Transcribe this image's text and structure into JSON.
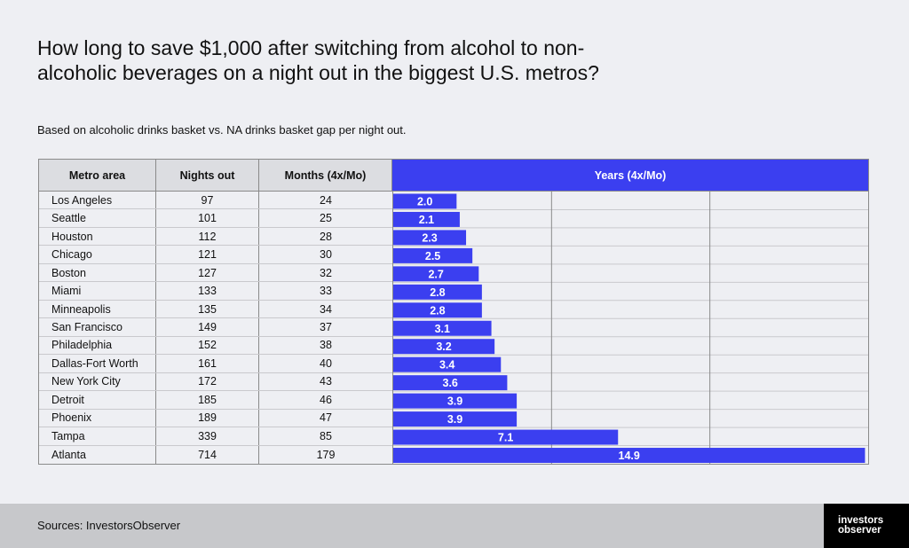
{
  "title": "How long to save $1,000 after switching from alcohol to non-alcoholic beverages on a night out in the biggest U.S. metros?",
  "subtitle": "Based on alcoholic drinks basket vs. NA drinks basket gap per night out.",
  "columns": {
    "metro": "Metro area",
    "nights": "Nights out",
    "months": "Months (4x/Mo)",
    "years": "Years (4x/Mo)"
  },
  "source": "Sources: InvestorsObserver",
  "logo": {
    "line1": "investors",
    "line2": "observer"
  },
  "colors": {
    "accent": "#3b3ff0",
    "background": "#eeeff3",
    "footer": "#c7c8cb"
  },
  "chart_data": {
    "type": "table",
    "title": "How long to save $1,000 after switching from alcohol to non-alcoholic beverages on a night out in the biggest U.S. metros?",
    "bar_column": "Years (4x/Mo)",
    "xlim": [
      0,
      15
    ],
    "grid": true,
    "rows": [
      {
        "metro": "Los Angeles",
        "nights": "97",
        "months": "24",
        "years": 2.0,
        "label": "2.0"
      },
      {
        "metro": "Seattle",
        "nights": "101",
        "months": "25",
        "years": 2.1,
        "label": "2.1"
      },
      {
        "metro": "Houston",
        "nights": "112",
        "months": "28",
        "years": 2.3,
        "label": "2.3"
      },
      {
        "metro": "Chicago",
        "nights": "121",
        "months": "30",
        "years": 2.5,
        "label": "2.5"
      },
      {
        "metro": "Boston",
        "nights": "127",
        "months": "32",
        "years": 2.7,
        "label": "2.7"
      },
      {
        "metro": "Miami",
        "nights": "133",
        "months": "33",
        "years": 2.8,
        "label": "2.8"
      },
      {
        "metro": "Minneapolis",
        "nights": "135",
        "months": "34",
        "years": 2.8,
        "label": "2.8"
      },
      {
        "metro": "San Francisco",
        "nights": "149",
        "months": "37",
        "years": 3.1,
        "label": "3.1"
      },
      {
        "metro": "Philadelphia",
        "nights": "152",
        "months": "38",
        "years": 3.2,
        "label": "3.2"
      },
      {
        "metro": "Dallas-Fort Worth",
        "nights": "161",
        "months": "40",
        "years": 3.4,
        "label": "3.4"
      },
      {
        "metro": "New York City",
        "nights": "172",
        "months": "43",
        "years": 3.6,
        "label": "3.6"
      },
      {
        "metro": "Detroit",
        "nights": "185",
        "months": "46",
        "years": 3.9,
        "label": "3.9"
      },
      {
        "metro": "Phoenix",
        "nights": "189",
        "months": "47",
        "years": 3.9,
        "label": "3.9"
      },
      {
        "metro": "Tampa",
        "nights": "339",
        "months": "85",
        "years": 7.1,
        "label": "7.1"
      },
      {
        "metro": "Atlanta",
        "nights": "714",
        "months": "179",
        "years": 14.9,
        "label": "14.9"
      }
    ]
  }
}
